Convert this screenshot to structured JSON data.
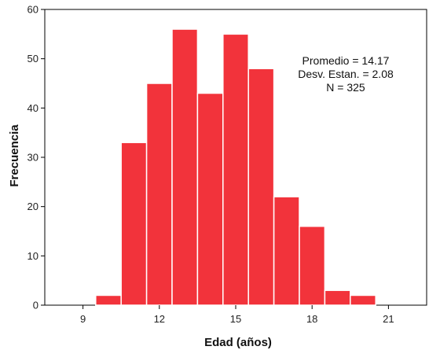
{
  "chart_data": {
    "type": "bar",
    "title": "",
    "xlabel": "Edad (años)",
    "ylabel": "Frecuencia",
    "bar_color": "#f2333b",
    "bar_edge_color": "#ffffff",
    "grid": false,
    "xlim": [
      7.5,
      22.5
    ],
    "ylim": [
      0,
      60
    ],
    "x_ticks": [
      9,
      12,
      15,
      18,
      21
    ],
    "y_ticks": [
      0,
      10,
      20,
      30,
      40,
      50,
      60
    ],
    "bin_width": 1,
    "bins": [
      {
        "x_start": 9.5,
        "value": 2
      },
      {
        "x_start": 10.5,
        "value": 33
      },
      {
        "x_start": 11.5,
        "value": 45
      },
      {
        "x_start": 12.5,
        "value": 56
      },
      {
        "x_start": 13.5,
        "value": 43
      },
      {
        "x_start": 14.5,
        "value": 55
      },
      {
        "x_start": 15.5,
        "value": 48
      },
      {
        "x_start": 16.5,
        "value": 22
      },
      {
        "x_start": 17.5,
        "value": 16
      },
      {
        "x_start": 18.5,
        "value": 3
      },
      {
        "x_start": 19.5,
        "value": 2
      }
    ],
    "annotations": [
      "Promedio = 14.17",
      "Desv. Estan. = 2.08",
      "N = 325"
    ],
    "annotation_placement": "top-right"
  }
}
